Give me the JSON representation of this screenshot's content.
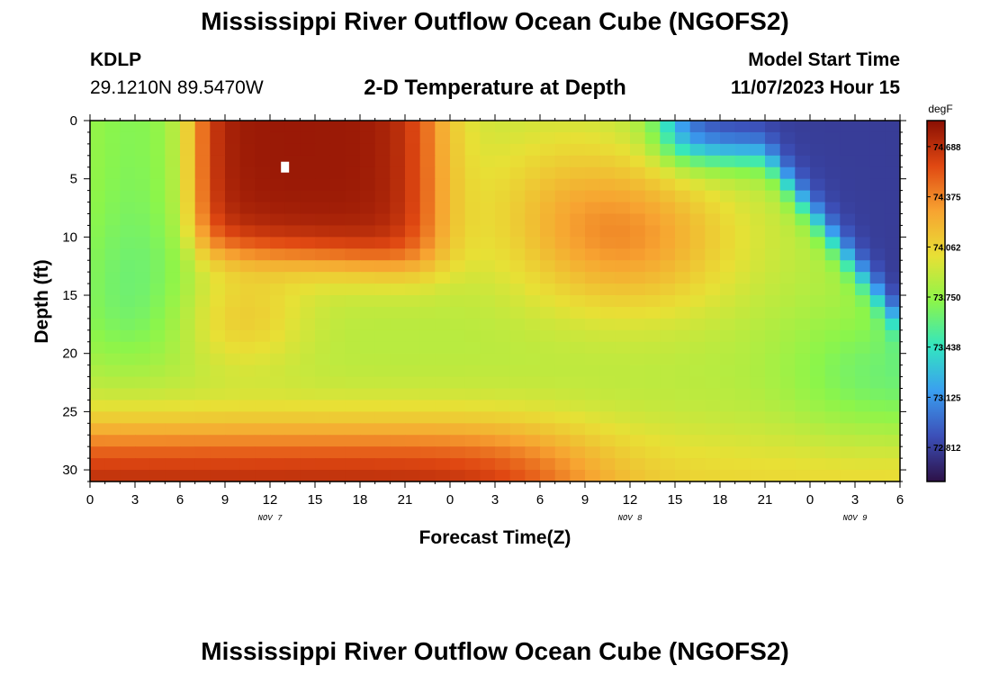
{
  "header": {
    "title": "Mississippi River Outflow Ocean Cube (NGOFS2)",
    "station": "KDLP",
    "coords": "29.1210N  89.5470W",
    "subtitle": "2-D Temperature at Depth",
    "start_label": "Model Start Time",
    "start_value": "11/07/2023 Hour 15"
  },
  "footer": {
    "title": "Mississippi River Outflow Ocean Cube (NGOFS2)"
  },
  "chart_data": {
    "type": "heatmap",
    "title": "2-D Temperature at Depth",
    "xlabel": "Forecast Time(Z)",
    "ylabel": "Depth (ft)",
    "x_range_hours": [
      0,
      54
    ],
    "x_tick_labels": [
      "0",
      "3",
      "6",
      "9",
      "12",
      "15",
      "18",
      "21",
      "0",
      "3",
      "6",
      "9",
      "12",
      "15",
      "18",
      "21",
      "0",
      "3",
      "6"
    ],
    "date_labels": [
      {
        "label": "NOV 7",
        "hour": 12
      },
      {
        "label": "NOV 8",
        "hour": 36
      },
      {
        "label": "NOV 9",
        "hour": 51
      }
    ],
    "y_range_ft": [
      0,
      31
    ],
    "y_tick_labels": [
      "0",
      "5",
      "10",
      "15",
      "20",
      "25",
      "30"
    ],
    "colorbar": {
      "unit": "degF",
      "labels": [
        "72.812",
        "73.125",
        "73.438",
        "73.750",
        "74.062",
        "74.375",
        "74.688"
      ],
      "value_range": [
        72.6,
        74.85
      ]
    },
    "marker": {
      "hour": 13,
      "depth": 4
    },
    "colors": {
      "scale": [
        "#2d1147",
        "#3c4fb8",
        "#3a9ef0",
        "#33e6c0",
        "#8cf54a",
        "#e8e035",
        "#f7a331",
        "#e04812",
        "#8a0f03"
      ]
    }
  }
}
